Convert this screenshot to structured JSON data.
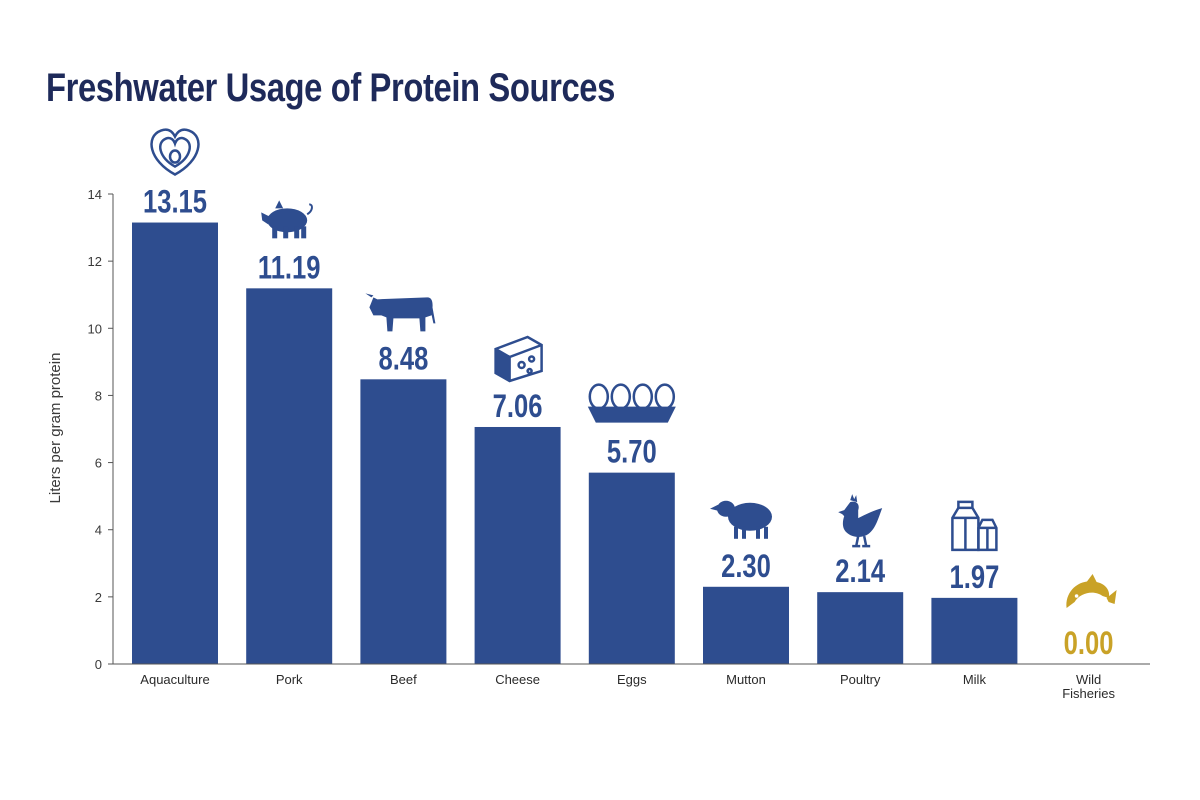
{
  "title": "Freshwater Usage of Protein Sources",
  "colors": {
    "bar": "#2e4d8f",
    "highlight": "#c9a227",
    "axis": "#555555",
    "title": "#1e2a5a"
  },
  "chart_data": {
    "type": "bar",
    "title": "Freshwater Usage of Protein Sources",
    "xlabel": "",
    "ylabel": "Liters per gram protein",
    "ylim": [
      0,
      14
    ],
    "yticks": [
      0,
      2,
      4,
      6,
      8,
      10,
      12,
      14
    ],
    "grid": false,
    "categories": [
      "Aquaculture",
      "Pork",
      "Beef",
      "Cheese",
      "Eggs",
      "Mutton",
      "Poultry",
      "Milk",
      "Wild Fisheries"
    ],
    "values": [
      13.15,
      11.19,
      8.48,
      7.06,
      5.7,
      2.3,
      2.14,
      1.97,
      0.0
    ],
    "value_labels": [
      "13.15",
      "11.19",
      "8.48",
      "7.06",
      "5.70",
      "2.30",
      "2.14",
      "1.97",
      "0.00"
    ],
    "icons": [
      "oyster-icon",
      "pig-icon",
      "cow-icon",
      "cheese-icon",
      "eggs-icon",
      "sheep-icon",
      "chicken-icon",
      "milk-carton-icon",
      "fish-icon"
    ],
    "highlight_category": "Wild Fisheries"
  }
}
